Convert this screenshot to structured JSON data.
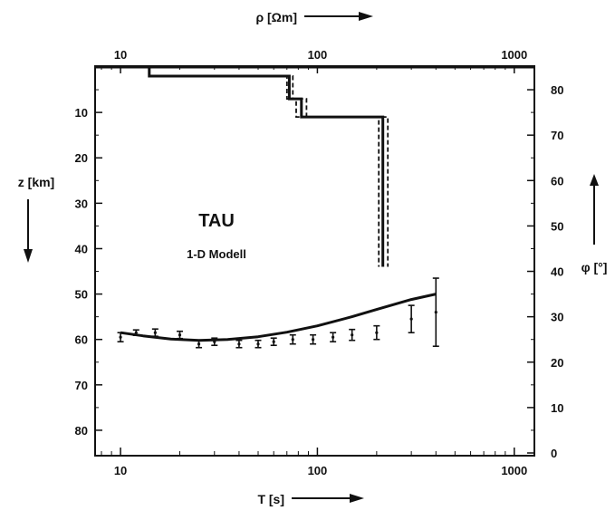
{
  "chart_data": {
    "type": "line",
    "title": "TAU",
    "subtitle": "1-D Modell",
    "axes": {
      "top": {
        "label": "ρ [Ωm]",
        "scale": "log",
        "range": [
          8,
          1200
        ],
        "ticks": [
          "10",
          "100",
          "1000"
        ],
        "tick_values": [
          10,
          100,
          1000
        ]
      },
      "bottom": {
        "label": "T [s]",
        "scale": "log",
        "range": [
          8,
          1200
        ],
        "ticks": [
          "10",
          "100",
          "1000"
        ],
        "tick_values": [
          10,
          100,
          1000
        ]
      },
      "left": {
        "label": "z [km]",
        "range": [
          0,
          85
        ],
        "inverted": true,
        "ticks": [
          "10",
          "20",
          "30",
          "40",
          "50",
          "60",
          "70",
          "80"
        ],
        "tick_values": [
          10,
          20,
          30,
          40,
          50,
          60,
          70,
          80
        ]
      },
      "right": {
        "label": "φ [°]",
        "range": [
          0,
          85
        ],
        "ticks": [
          "0",
          "10",
          "20",
          "30",
          "40",
          "50",
          "60",
          "70",
          "80"
        ],
        "tick_values": [
          0,
          10,
          20,
          30,
          40,
          50,
          60,
          70,
          80
        ]
      }
    },
    "grid": false,
    "resistivity_model": {
      "axes": [
        "top",
        "left"
      ],
      "best": {
        "rho": [
          14,
          14,
          72,
          72,
          83,
          83,
          215,
          215
        ],
        "z": [
          0,
          2,
          2,
          7,
          7,
          11,
          11,
          44
        ]
      },
      "bounds": [
        {
          "rho": [
            14,
            14,
            70,
            70,
            78,
            78,
            205,
            205
          ],
          "z": [
            0,
            2,
            2,
            7,
            7,
            11,
            11,
            44
          ]
        },
        {
          "rho": [
            14,
            14,
            75,
            75,
            88,
            88,
            228,
            228
          ],
          "z": [
            0,
            2,
            2,
            7,
            7,
            11,
            11,
            44
          ]
        }
      ]
    },
    "phase_fit": {
      "axes": [
        "bottom",
        "right"
      ],
      "x": [
        10,
        13,
        18,
        25,
        35,
        50,
        70,
        100,
        150,
        200,
        300,
        400
      ],
      "y": [
        26.5,
        25.8,
        25.1,
        24.8,
        25.0,
        25.6,
        26.6,
        28.0,
        30.0,
        31.6,
        33.8,
        35.0
      ]
    },
    "phase_data": {
      "axes": [
        "bottom",
        "right"
      ],
      "x": [
        10,
        12,
        15,
        20,
        25,
        30,
        40,
        50,
        60,
        75,
        95,
        120,
        150,
        200,
        300,
        400
      ],
      "y": [
        25.5,
        26.5,
        26.5,
        26.0,
        24.0,
        24.5,
        24.0,
        24.0,
        24.5,
        25.0,
        25.0,
        25.5,
        26.0,
        26.5,
        29.5,
        31.0
      ],
      "err": [
        1.0,
        0.6,
        0.8,
        0.8,
        0.8,
        0.8,
        0.8,
        0.8,
        0.8,
        1.0,
        1.0,
        1.0,
        1.2,
        1.5,
        3.0,
        7.5
      ]
    }
  }
}
